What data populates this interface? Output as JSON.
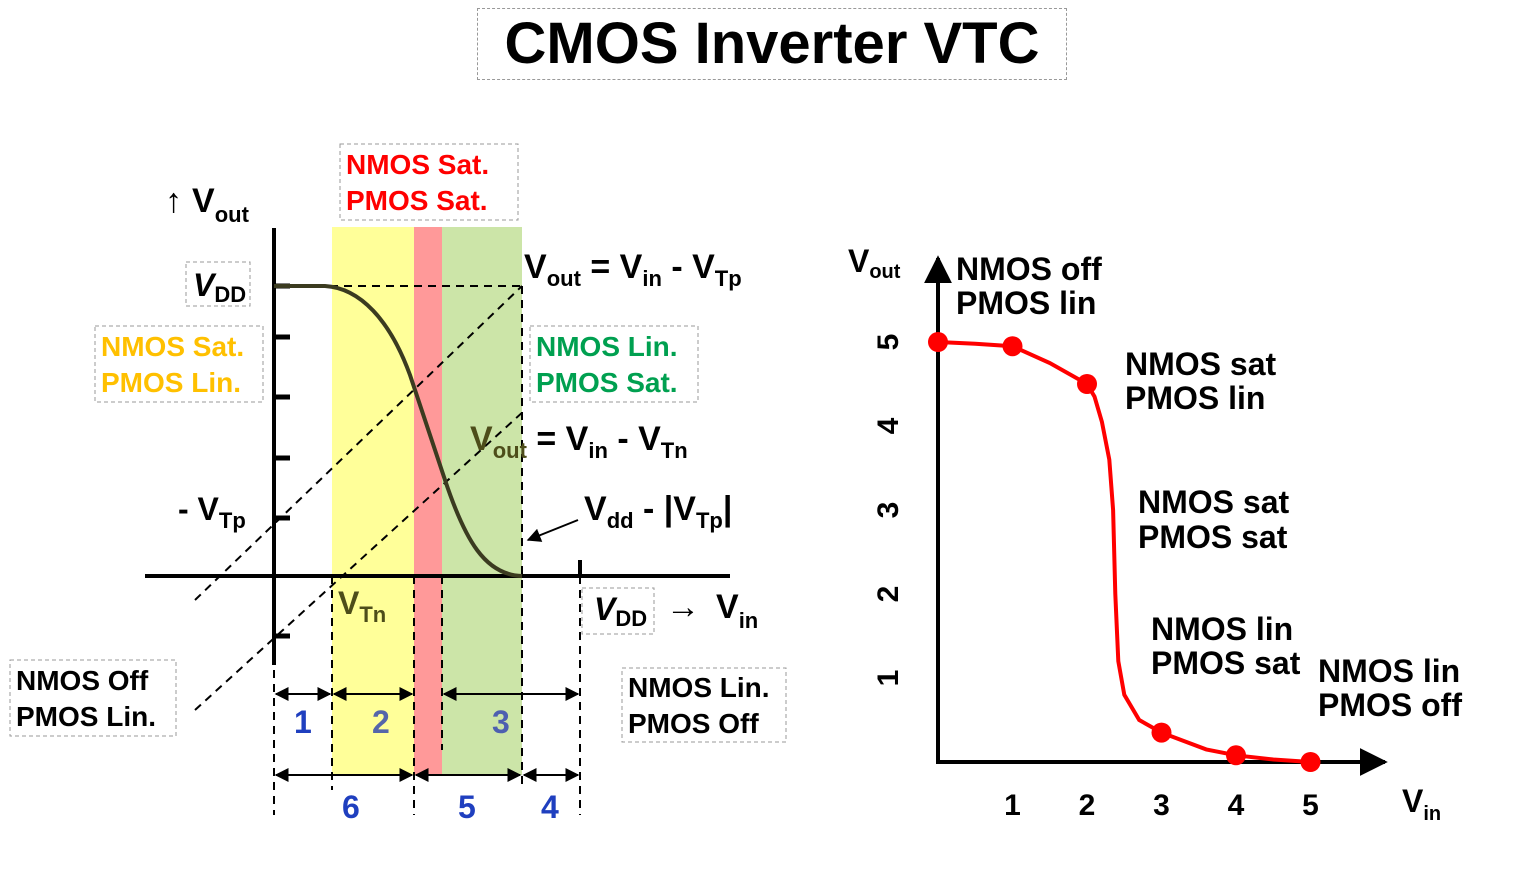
{
  "title": "CMOS Inverter VTC",
  "colors": {
    "yellow_region": "#ffff99",
    "red_region": "#ff9999",
    "green_region": "#cce5a8",
    "orange_text": "#ffc000",
    "red_text": "#ff0000",
    "green_text": "#00a050",
    "blue_text": "#1f3fbf",
    "curve_red": "#ff0000"
  },
  "left_diagram": {
    "y_axis_label": {
      "main": "V",
      "sub": "out",
      "arrow": "↑"
    },
    "x_axis_label": {
      "arrow": "→",
      "main": "V",
      "sub": "in"
    },
    "vdd_y_label": {
      "main": "V",
      "sub": "DD"
    },
    "vdd_x_label": {
      "main": "V",
      "sub": "DD"
    },
    "neg_vtp_label": {
      "main": "- V",
      "sub": "Tp"
    },
    "vtn_label": {
      "main": "V",
      "sub": "Tn"
    },
    "line_pmos_label": {
      "a": "V",
      "a_sub": "out",
      "eq": " = V",
      "b_sub": "in",
      "c": " - V",
      "c_sub": "Tp"
    },
    "line_nmos_label": {
      "a": "V",
      "a_sub": "out",
      "eq": " = V",
      "b_sub": "in",
      "c": " - V",
      "c_sub": "Tn"
    },
    "vdd_vtp_label": {
      "a": "V",
      "a_sub": "dd",
      "b": " - |V",
      "b_sub": "Tp",
      "c": "|"
    },
    "region_labels": {
      "top_red": [
        "NMOS Sat.",
        "PMOS Sat."
      ],
      "left_orange": [
        "NMOS Sat.",
        "PMOS Lin."
      ],
      "right_green": [
        "NMOS Lin.",
        "PMOS Sat."
      ],
      "bottom_left": [
        "NMOS Off",
        "PMOS Lin."
      ],
      "bottom_right": [
        "NMOS Lin.",
        "PMOS Off"
      ]
    },
    "region_numbers_top": [
      "1",
      "2",
      "3"
    ],
    "region_numbers_bottom": [
      "6",
      "5",
      "4"
    ]
  },
  "chart_data": {
    "type": "line",
    "xlabel": {
      "main": "V",
      "sub": "in"
    },
    "ylabel": {
      "main": "V",
      "sub": "out"
    },
    "x_ticks": [
      "1",
      "2",
      "3",
      "4",
      "5"
    ],
    "y_ticks": [
      "1",
      "2",
      "3",
      "4",
      "5"
    ],
    "xlim": [
      0,
      5.5
    ],
    "ylim": [
      0,
      5.2
    ],
    "curve": [
      [
        0,
        5.0
      ],
      [
        0.5,
        4.98
      ],
      [
        1.0,
        4.95
      ],
      [
        1.5,
        4.75
      ],
      [
        2.0,
        4.5
      ],
      [
        2.1,
        4.35
      ],
      [
        2.2,
        4.05
      ],
      [
        2.3,
        3.6
      ],
      [
        2.35,
        3.0
      ],
      [
        2.38,
        2.0
      ],
      [
        2.42,
        1.2
      ],
      [
        2.5,
        0.8
      ],
      [
        2.7,
        0.5
      ],
      [
        3.0,
        0.35
      ],
      [
        3.3,
        0.25
      ],
      [
        3.6,
        0.15
      ],
      [
        4.0,
        0.08
      ],
      [
        4.5,
        0.03
      ],
      [
        5.0,
        0.0
      ]
    ],
    "points": [
      {
        "x": 0,
        "y": 5.0
      },
      {
        "x": 1,
        "y": 4.95
      },
      {
        "x": 2,
        "y": 4.5
      },
      {
        "x": 3,
        "y": 0.35
      },
      {
        "x": 4,
        "y": 0.08
      },
      {
        "x": 5,
        "y": 0.0
      }
    ],
    "annotations": [
      {
        "lines": [
          "NMOS off",
          "PMOS lin"
        ]
      },
      {
        "lines": [
          "NMOS sat",
          "PMOS lin"
        ]
      },
      {
        "lines": [
          "NMOS sat",
          "PMOS sat"
        ]
      },
      {
        "lines": [
          "NMOS lin",
          "PMOS sat"
        ]
      },
      {
        "lines": [
          "NMOS lin",
          "PMOS off"
        ]
      }
    ]
  }
}
